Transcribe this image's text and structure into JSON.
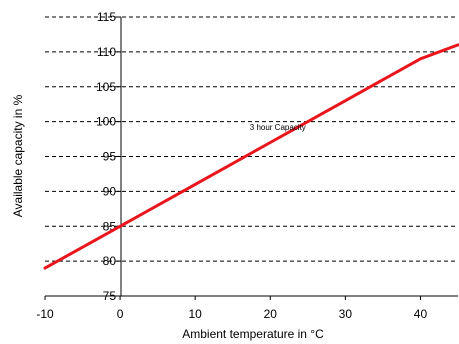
{
  "chart_data": {
    "type": "line",
    "title": "",
    "xlabel": "Ambient temperature in °C",
    "ylabel": "Available capacity in %",
    "xlim": [
      -10,
      45
    ],
    "ylim": [
      75,
      115
    ],
    "xticks": [
      -10,
      0,
      10,
      20,
      30,
      40
    ],
    "yticks": [
      75,
      80,
      85,
      90,
      95,
      100,
      105,
      110,
      115
    ],
    "grid": "horizontal-dashed",
    "series": [
      {
        "name": "3 hour Capacity",
        "color": "#e8161c",
        "x": [
          -10,
          0,
          10,
          20,
          30,
          40,
          45
        ],
        "y": [
          79,
          85,
          91,
          97,
          103,
          109,
          111
        ]
      }
    ],
    "annotations": [
      {
        "text": "3 hour Capacity",
        "x": 21,
        "y": 98.8
      }
    ]
  }
}
